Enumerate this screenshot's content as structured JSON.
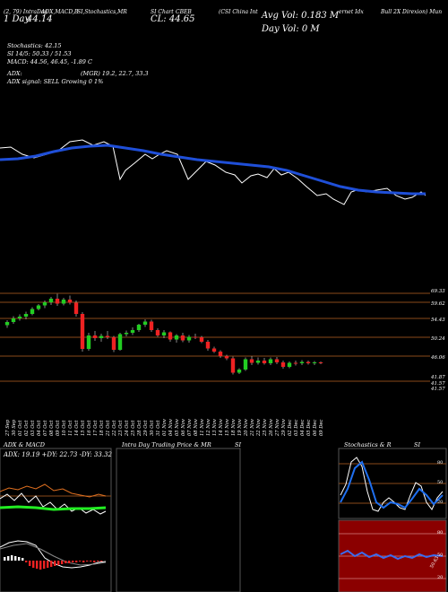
{
  "header": {
    "parts": [
      "(2, 79) IntraDay",
      "ADX,MACD,B",
      "SI,Stochastics,MR",
      "SI Chart",
      "CBEB",
      "(CSI China Int",
      "ernet Idx",
      "Bull 2X Direxion) Mun"
    ],
    "day_label": "1 Day",
    "day_value": "44.14",
    "close_label": "CL: 44.65",
    "avg_vol": "Avg Vol: 0.183 M",
    "day_vol": "Day Vol: 0   M"
  },
  "info": {
    "stochastics": "Stochastics: 42.15",
    "si": "SI 14/5: 50.33 / 51.53",
    "macd": "MACD: 44.56, 46.45, -1.89 C",
    "adx": "ADX:",
    "adx_vals": "(MGR) 19.2, 22.7, 33.3",
    "adx_signal": "ADX  signal: SELL Growing 0 1%"
  },
  "price_labels": [
    "69.33",
    "59.62",
    "54.43",
    "50.24",
    "46.06",
    "41.87",
    "41.57",
    "41.57"
  ],
  "colors": {
    "up": "#22cc22",
    "down": "#ee2222",
    "ma": "#1f4fd8",
    "ref": "#8a4a1a"
  },
  "chart_data": {
    "type": "candlestick",
    "x": [
      "27 Sep",
      "30 Sep",
      "01 Oct",
      "02 Oct",
      "03 Oct",
      "04 Oct",
      "07 Oct",
      "08 Oct",
      "09 Oct",
      "10 Oct",
      "11 Oct",
      "14 Oct",
      "15 Oct",
      "16 Oct",
      "17 Oct",
      "18 Oct",
      "21 Oct",
      "22 Oct",
      "23 Oct",
      "24 Oct",
      "25 Oct",
      "28 Oct",
      "29 Oct",
      "30 Oct",
      "31 Oct",
      "01 Nov",
      "04 Nov",
      "05 Nov",
      "06 Nov",
      "07 Nov",
      "08 Nov",
      "11 Nov",
      "12 Nov",
      "13 Nov",
      "14 Nov",
      "15 Nov",
      "18 Nov",
      "19 Nov",
      "20 Nov",
      "21 Nov",
      "22 Nov",
      "25 Nov",
      "26 Nov",
      "27 Nov",
      "29 Nov",
      "02 Dec",
      "03 Dec",
      "04 Dec",
      "05 Dec",
      "06 Dec",
      "09 Dec"
    ],
    "ohlc": [
      [
        56.5,
        57.6,
        55.9,
        57.2
      ],
      [
        57.2,
        58.5,
        56.8,
        58.0
      ],
      [
        58.0,
        58.9,
        57.5,
        58.4
      ],
      [
        58.4,
        59.5,
        57.8,
        59.0
      ],
      [
        59.0,
        60.5,
        58.7,
        60.1
      ],
      [
        60.1,
        61.2,
        59.8,
        60.9
      ],
      [
        60.9,
        62.0,
        60.3,
        61.6
      ],
      [
        61.6,
        62.8,
        61.0,
        62.4
      ],
      [
        62.4,
        63.5,
        60.8,
        61.3
      ],
      [
        61.3,
        62.6,
        60.9,
        62.2
      ],
      [
        62.2,
        63.1,
        61.1,
        61.5
      ],
      [
        61.5,
        62.0,
        58.4,
        59.0
      ],
      [
        59.0,
        59.4,
        50.6,
        51.2
      ],
      [
        51.2,
        54.8,
        50.8,
        54.2
      ],
      [
        54.2,
        55.2,
        53.0,
        53.6
      ],
      [
        53.6,
        54.6,
        52.8,
        54.1
      ],
      [
        54.1,
        55.2,
        53.4,
        53.8
      ],
      [
        53.8,
        54.1,
        50.5,
        51.0
      ],
      [
        51.0,
        54.8,
        50.8,
        54.5
      ],
      [
        54.5,
        55.3,
        54.0,
        54.8
      ],
      [
        54.8,
        56.0,
        54.3,
        55.4
      ],
      [
        55.4,
        56.8,
        55.0,
        56.6
      ],
      [
        56.6,
        57.8,
        56.1,
        57.3
      ],
      [
        57.3,
        57.7,
        55.0,
        55.4
      ],
      [
        55.4,
        55.8,
        53.9,
        54.2
      ],
      [
        54.2,
        55.4,
        53.6,
        54.9
      ],
      [
        54.9,
        55.1,
        52.8,
        53.3
      ],
      [
        53.3,
        54.5,
        52.6,
        54.2
      ],
      [
        54.2,
        54.8,
        52.7,
        53.1
      ],
      [
        53.1,
        54.3,
        52.6,
        53.9
      ],
      [
        53.9,
        54.6,
        53.4,
        53.8
      ],
      [
        53.8,
        54.1,
        52.5,
        52.8
      ],
      [
        52.8,
        53.2,
        50.8,
        51.3
      ],
      [
        51.3,
        51.7,
        50.3,
        50.6
      ],
      [
        50.6,
        50.9,
        49.2,
        49.6
      ],
      [
        49.6,
        49.9,
        48.7,
        49.1
      ],
      [
        49.1,
        49.5,
        45.5,
        45.9
      ],
      [
        45.9,
        46.9,
        45.6,
        46.6
      ],
      [
        46.6,
        49.3,
        46.3,
        48.9
      ],
      [
        48.9,
        49.6,
        47.6,
        48.1
      ],
      [
        48.1,
        49.3,
        47.7,
        48.6
      ],
      [
        48.6,
        49.2,
        47.7,
        48.0
      ],
      [
        48.0,
        49.3,
        47.6,
        48.9
      ],
      [
        48.9,
        49.4,
        47.8,
        48.2
      ],
      [
        48.2,
        48.6,
        46.8,
        47.2
      ],
      [
        47.2,
        48.4,
        46.9,
        48.1
      ],
      [
        48.1,
        48.6,
        47.5,
        48.0
      ],
      [
        48.0,
        48.7,
        47.6,
        48.3
      ],
      [
        48.3,
        48.6,
        47.7,
        48.0
      ],
      [
        48.0,
        48.5,
        47.6,
        48.2
      ],
      [
        48.2,
        48.4,
        47.8,
        48.0
      ]
    ],
    "ylim": [
      42,
      65
    ]
  },
  "panels": {
    "adx": {
      "title": "ADX  & MACD",
      "readout": "ADX: 19.19 +DY: 22.73 -DY: 33.32"
    },
    "mrsi": {
      "title_left": "Intra  Day Trading Price  & MR",
      "title_right": "SI"
    },
    "stoch": {
      "title_left": "Stochastics & R",
      "title_right": "SI",
      "labels": [
        "80",
        "50",
        "20"
      ],
      "rsi_labels": [
        "80",
        "50",
        "20"
      ],
      "rsi_value": "50.63"
    }
  }
}
